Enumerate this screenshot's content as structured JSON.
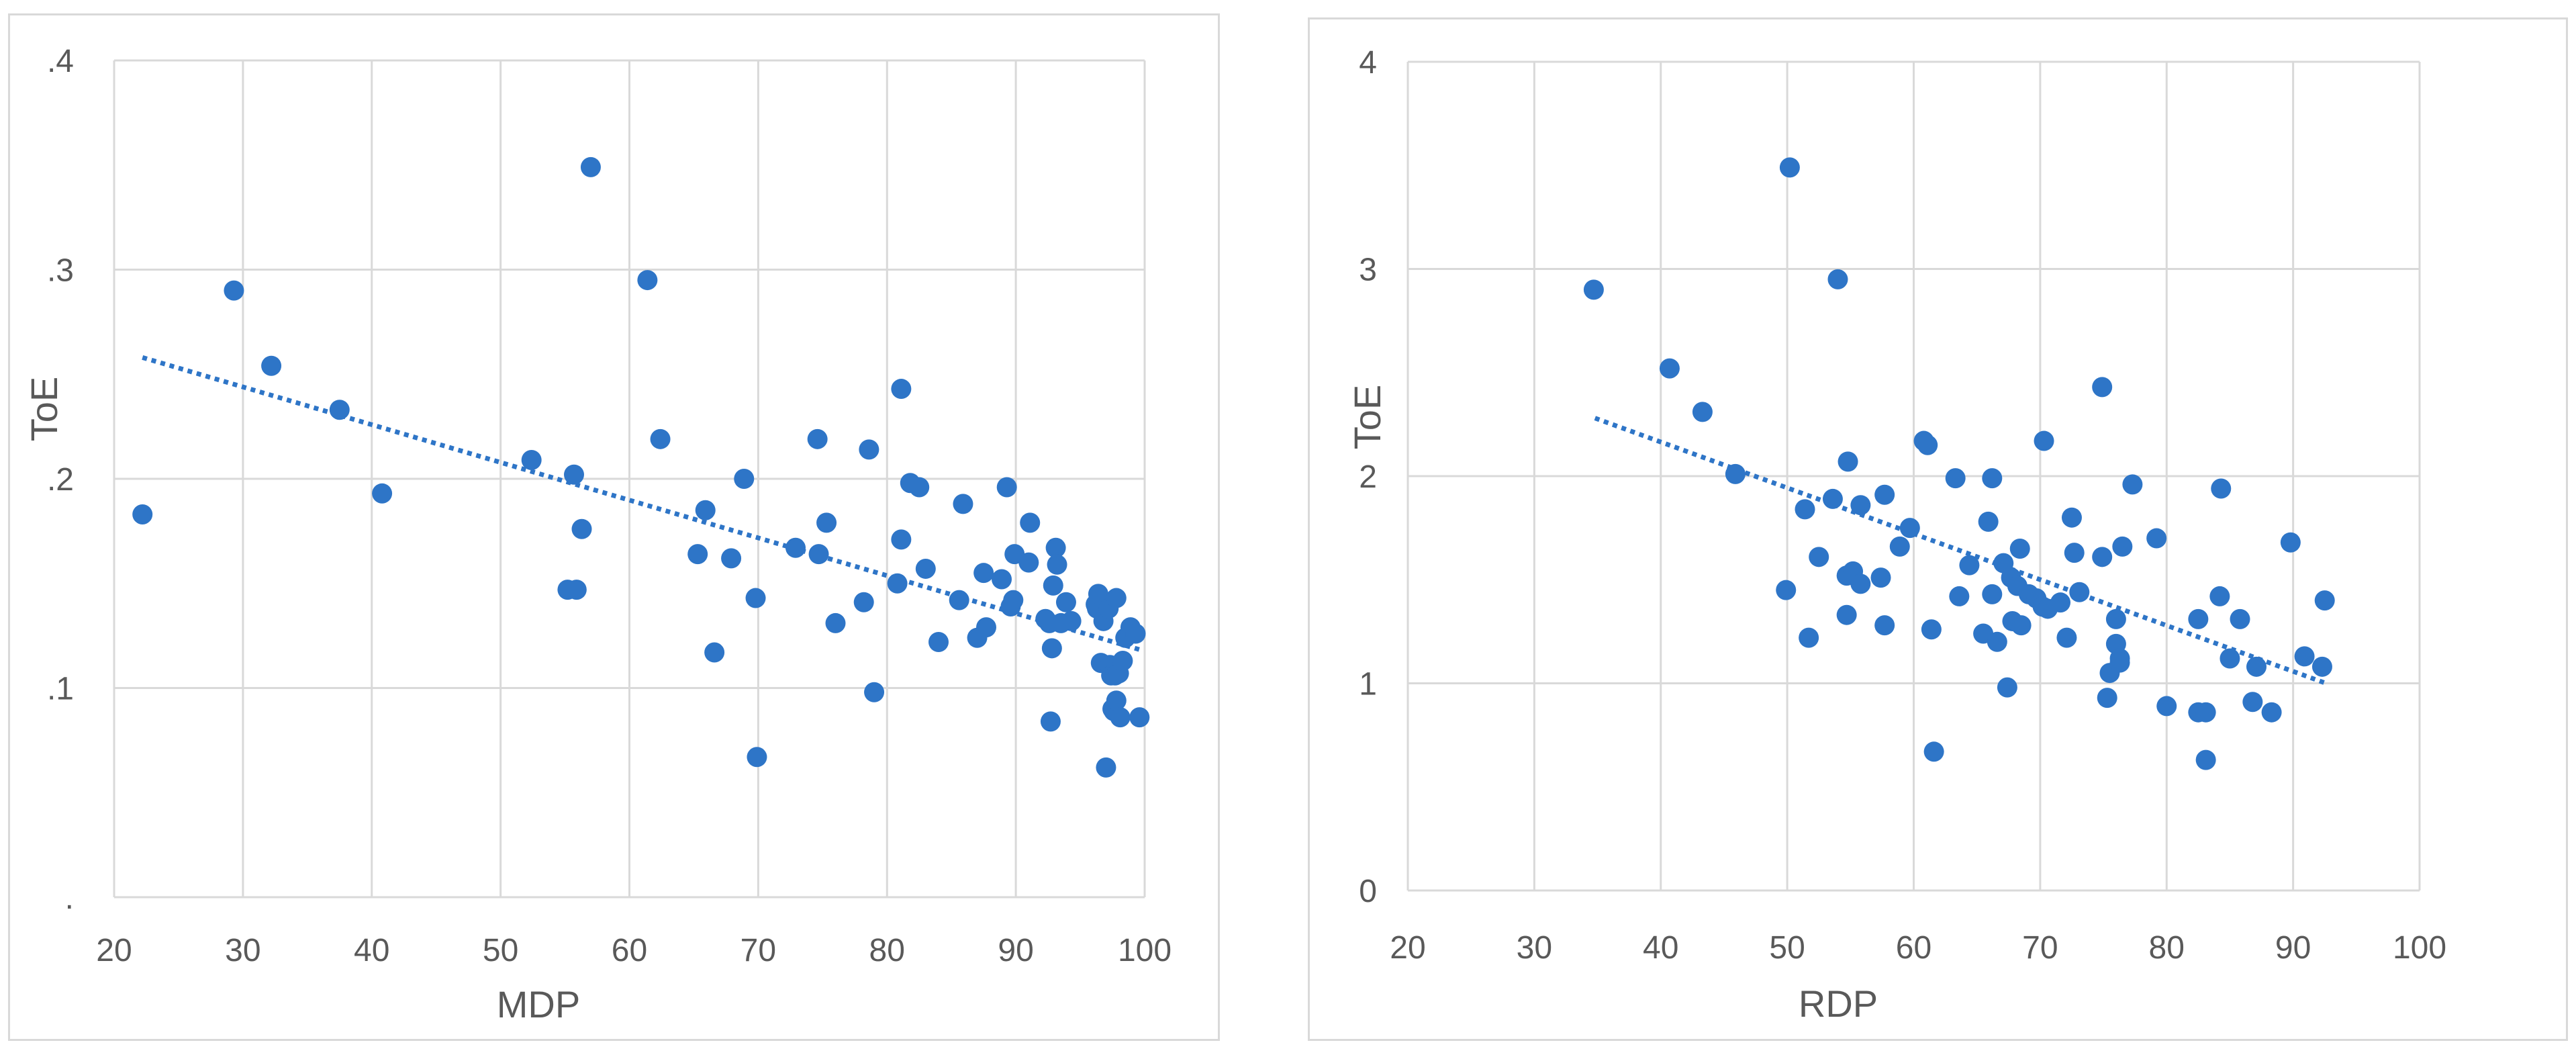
{
  "chart_data": [
    {
      "type": "scatter",
      "xlabel": "MDP",
      "ylabel": "ToE",
      "xlim": [
        20,
        100
      ],
      "ylim": [
        0,
        0.4
      ],
      "xticks": [
        20,
        30,
        40,
        50,
        60,
        70,
        80,
        90,
        100
      ],
      "xtick_labels": [
        "20",
        "30",
        "40",
        "50",
        "60",
        "70",
        "80",
        "90",
        "100"
      ],
      "yticks": [
        0,
        0.1,
        0.2,
        0.3,
        0.4
      ],
      "ytick_labels": [
        ".",
        ".1",
        ".2",
        ".3",
        ".4"
      ],
      "grid": true,
      "color": "#2e75c7",
      "trendline": {
        "style": "dotted",
        "x": [
          22.2,
          99.8
        ],
        "y": [
          0.258,
          0.118
        ]
      },
      "points": [
        [
          22.2,
          0.183
        ],
        [
          29.3,
          0.29
        ],
        [
          32.2,
          0.254
        ],
        [
          37.5,
          0.233
        ],
        [
          40.8,
          0.193
        ],
        [
          52.4,
          0.209
        ],
        [
          55.2,
          0.147
        ],
        [
          55.7,
          0.202
        ],
        [
          55.9,
          0.147
        ],
        [
          56.3,
          0.176
        ],
        [
          57.0,
          0.349
        ],
        [
          61.4,
          0.295
        ],
        [
          62.4,
          0.219
        ],
        [
          65.3,
          0.164
        ],
        [
          65.9,
          0.185
        ],
        [
          66.6,
          0.117
        ],
        [
          67.9,
          0.162
        ],
        [
          68.9,
          0.2
        ],
        [
          69.8,
          0.143
        ],
        [
          69.9,
          0.067
        ],
        [
          72.9,
          0.167
        ],
        [
          74.6,
          0.219
        ],
        [
          74.7,
          0.164
        ],
        [
          75.3,
          0.179
        ],
        [
          76.0,
          0.131
        ],
        [
          78.2,
          0.141
        ],
        [
          78.6,
          0.214
        ],
        [
          79.0,
          0.098
        ],
        [
          80.8,
          0.15
        ],
        [
          81.1,
          0.171
        ],
        [
          81.1,
          0.243
        ],
        [
          81.8,
          0.198
        ],
        [
          82.5,
          0.196
        ],
        [
          83.0,
          0.157
        ],
        [
          84.0,
          0.122
        ],
        [
          85.6,
          0.142
        ],
        [
          85.9,
          0.188
        ],
        [
          87.0,
          0.124
        ],
        [
          87.5,
          0.155
        ],
        [
          87.7,
          0.129
        ],
        [
          88.9,
          0.152
        ],
        [
          89.3,
          0.196
        ],
        [
          89.6,
          0.139
        ],
        [
          89.8,
          0.142
        ],
        [
          89.9,
          0.164
        ],
        [
          91.0,
          0.16
        ],
        [
          91.1,
          0.179
        ],
        [
          92.3,
          0.133
        ],
        [
          92.6,
          0.131
        ],
        [
          92.7,
          0.084
        ],
        [
          92.8,
          0.119
        ],
        [
          92.9,
          0.149
        ],
        [
          93.1,
          0.167
        ],
        [
          93.2,
          0.159
        ],
        [
          93.5,
          0.131
        ],
        [
          93.9,
          0.141
        ],
        [
          94.3,
          0.132
        ],
        [
          96.2,
          0.14
        ],
        [
          96.3,
          0.138
        ],
        [
          96.4,
          0.145
        ],
        [
          96.6,
          0.112
        ],
        [
          96.8,
          0.132
        ],
        [
          97.0,
          0.062
        ],
        [
          97.2,
          0.138
        ],
        [
          97.3,
          0.111
        ],
        [
          97.4,
          0.106
        ],
        [
          97.5,
          0.09
        ],
        [
          97.6,
          0.089
        ],
        [
          97.7,
          0.106
        ],
        [
          97.8,
          0.143
        ],
        [
          97.8,
          0.094
        ],
        [
          98.0,
          0.107
        ],
        [
          98.1,
          0.086
        ],
        [
          98.3,
          0.113
        ],
        [
          98.5,
          0.124
        ],
        [
          98.9,
          0.129
        ],
        [
          99.3,
          0.126
        ],
        [
          99.6,
          0.086
        ]
      ]
    },
    {
      "type": "scatter",
      "xlabel": "RDP",
      "ylabel": "ToE",
      "xlim": [
        20,
        100
      ],
      "ylim": [
        0,
        4
      ],
      "xticks": [
        20,
        30,
        40,
        50,
        60,
        70,
        80,
        90,
        100
      ],
      "xtick_labels": [
        "20",
        "30",
        "40",
        "50",
        "60",
        "70",
        "80",
        "90",
        "100"
      ],
      "yticks": [
        0,
        1,
        2,
        3,
        4
      ],
      "ytick_labels": [
        "0",
        "1",
        "2",
        "3",
        "4"
      ],
      "grid": true,
      "color": "#2e75c7",
      "trendline": {
        "style": "dotted",
        "x": [
          34.8,
          92.6
        ],
        "y": [
          2.28,
          1.0
        ]
      },
      "points": [
        [
          34.7,
          2.9
        ],
        [
          40.7,
          2.52
        ],
        [
          43.3,
          2.31
        ],
        [
          45.9,
          2.01
        ],
        [
          49.9,
          1.45
        ],
        [
          50.2,
          3.49
        ],
        [
          51.4,
          1.84
        ],
        [
          51.7,
          1.22
        ],
        [
          52.5,
          1.61
        ],
        [
          53.6,
          1.89
        ],
        [
          54.0,
          2.95
        ],
        [
          54.7,
          1.33
        ],
        [
          54.7,
          1.52
        ],
        [
          54.8,
          2.07
        ],
        [
          55.2,
          1.54
        ],
        [
          55.8,
          1.86
        ],
        [
          55.8,
          1.48
        ],
        [
          57.4,
          1.51
        ],
        [
          57.7,
          1.28
        ],
        [
          57.7,
          1.91
        ],
        [
          58.9,
          1.66
        ],
        [
          59.7,
          1.75
        ],
        [
          60.8,
          2.17
        ],
        [
          61.1,
          2.15
        ],
        [
          61.4,
          1.26
        ],
        [
          61.6,
          0.67
        ],
        [
          63.3,
          1.99
        ],
        [
          63.6,
          1.42
        ],
        [
          64.4,
          1.57
        ],
        [
          65.5,
          1.24
        ],
        [
          65.9,
          1.78
        ],
        [
          66.2,
          1.99
        ],
        [
          66.2,
          1.43
        ],
        [
          66.6,
          1.2
        ],
        [
          67.1,
          1.58
        ],
        [
          67.4,
          0.98
        ],
        [
          67.7,
          1.51
        ],
        [
          67.8,
          1.3
        ],
        [
          68.2,
          1.47
        ],
        [
          68.4,
          1.65
        ],
        [
          68.5,
          1.28
        ],
        [
          69.1,
          1.43
        ],
        [
          69.7,
          1.41
        ],
        [
          70.2,
          1.37
        ],
        [
          70.3,
          2.17
        ],
        [
          70.6,
          1.36
        ],
        [
          71.6,
          1.39
        ],
        [
          72.1,
          1.22
        ],
        [
          72.5,
          1.8
        ],
        [
          72.7,
          1.63
        ],
        [
          73.1,
          1.44
        ],
        [
          74.9,
          2.43
        ],
        [
          74.9,
          1.61
        ],
        [
          75.3,
          0.93
        ],
        [
          75.5,
          1.05
        ],
        [
          76.0,
          1.31
        ],
        [
          76.0,
          1.19
        ],
        [
          76.3,
          1.12
        ],
        [
          76.3,
          1.1
        ],
        [
          76.5,
          1.66
        ],
        [
          77.3,
          1.96
        ],
        [
          79.2,
          1.7
        ],
        [
          80.0,
          0.89
        ],
        [
          82.5,
          1.31
        ],
        [
          82.5,
          0.86
        ],
        [
          83.1,
          0.86
        ],
        [
          83.1,
          0.63
        ],
        [
          84.2,
          1.42
        ],
        [
          84.3,
          1.94
        ],
        [
          85.0,
          1.12
        ],
        [
          85.8,
          1.31
        ],
        [
          86.8,
          0.91
        ],
        [
          87.1,
          1.08
        ],
        [
          88.3,
          0.86
        ],
        [
          89.8,
          1.68
        ],
        [
          90.9,
          1.13
        ],
        [
          92.3,
          1.08
        ],
        [
          92.5,
          1.4
        ]
      ]
    }
  ]
}
